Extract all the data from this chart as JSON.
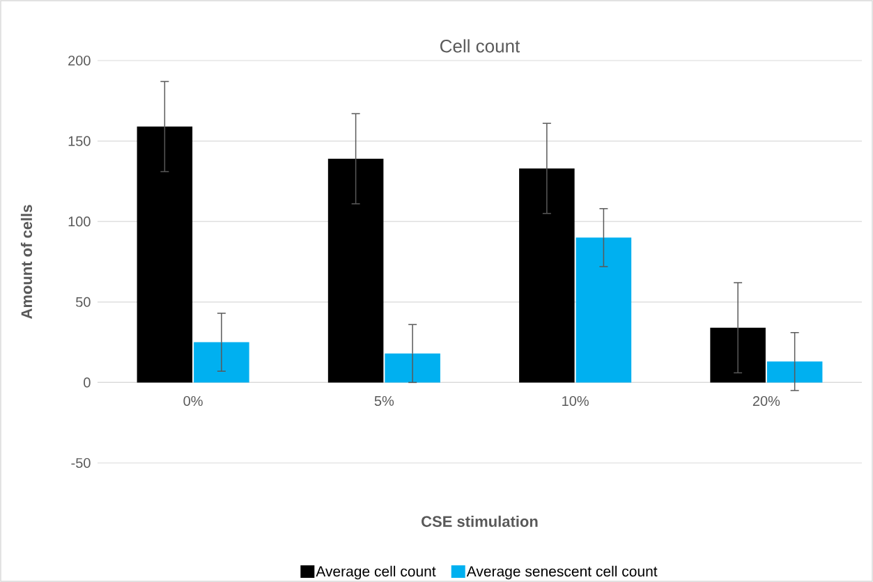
{
  "chart_data": {
    "type": "bar",
    "title": "Cell count",
    "xlabel": "CSE stimulation",
    "ylabel": "Amount of cells",
    "categories": [
      "0%",
      "5%",
      "10%",
      "20%"
    ],
    "series": [
      {
        "name": "Average cell count",
        "color": "#000000",
        "values": [
          159,
          139,
          133,
          34
        ],
        "errors": [
          28,
          28,
          28,
          28
        ]
      },
      {
        "name": "Average senescent cell count",
        "color": "#00b0f0",
        "values": [
          25,
          18,
          90,
          13
        ],
        "errors": [
          18,
          18,
          18,
          18
        ]
      }
    ],
    "ylim": [
      -50,
      200
    ],
    "yticks": [
      -50,
      0,
      50,
      100,
      150,
      200
    ],
    "grid": "y",
    "legend": "bottom"
  }
}
